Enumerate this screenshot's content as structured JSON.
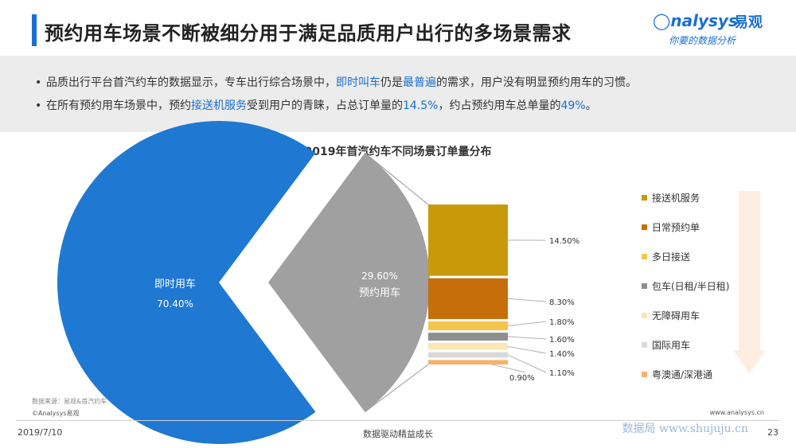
{
  "header": {
    "title": "预约用车场景不断被细分用于满足品质用户出行的多场景需求",
    "logo_brand": "nalysys",
    "logo_brand_cn": "易观",
    "logo_slogan": "你要的数据分析"
  },
  "summary": {
    "bullet1": {
      "p1": "品质出行平台首汽约车的数据显示，专车出行综合场景中，",
      "h1": "即时叫车",
      "p2": "仍是",
      "h2": "最普遍",
      "p3": "的需求，用户没有明显预约用车的习惯。"
    },
    "bullet2": {
      "p1": "在所有预约用车场景中，预约",
      "h1": "接送机服务",
      "p2": "受到用户的青睐，占总订单量的",
      "h2": "14.5%",
      "p3": "，约占预约用车总单量的",
      "h3": "49%",
      "p4": "。"
    }
  },
  "chart_data": {
    "type": "pie",
    "title": "2019年首汽约车不同场景订单量分布",
    "pie": {
      "categories": [
        "即时用车",
        "预约用车"
      ],
      "values": [
        70.4,
        29.6
      ],
      "value_labels": [
        "70.40%",
        "29.60%"
      ],
      "colors": [
        "#1f78d1",
        "#a0a0a0"
      ]
    },
    "breakdown": {
      "type": "stacked-bar",
      "parent": "预约用车",
      "categories": [
        "接送机服务",
        "日常预约单",
        "多日接送",
        "包车(日租/半日租)",
        "无障碍用车",
        "国际用车",
        "粤澳通/深港通"
      ],
      "values": [
        14.5,
        8.3,
        1.8,
        1.6,
        1.4,
        1.1,
        0.9
      ],
      "value_labels": [
        "14.50%",
        "8.30%",
        "1.80%",
        "1.60%",
        "1.40%",
        "1.10%",
        "0.90%"
      ],
      "colors": [
        "#c89a0b",
        "#c66f0a",
        "#f5c44d",
        "#8f8f8f",
        "#fbe7b5",
        "#d9d9d9",
        "#f6b26b"
      ]
    },
    "legend_position": "right"
  },
  "footer": {
    "source": "数据来源：易观&首汽约车",
    "copyright": "©Analysys易观",
    "website": "www.analysys.cn",
    "date": "2019/7/10",
    "slogan": "数据驱动精益成长",
    "page_number": "23",
    "watermark": "数据局 www.shujuju.cn"
  }
}
